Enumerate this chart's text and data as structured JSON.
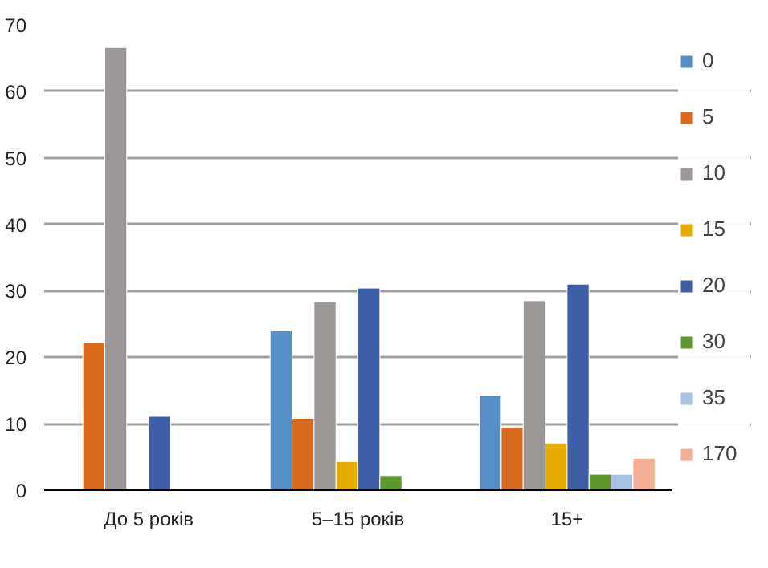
{
  "chart_data": {
    "type": "bar",
    "categories": [
      "До 5 років",
      "5–15 років",
      "15+"
    ],
    "series": [
      {
        "name": "0",
        "color": "#568ec6",
        "values": [
          null,
          24,
          14.3
        ]
      },
      {
        "name": "5",
        "color": "#d86a1e",
        "values": [
          22.2,
          10.8,
          9.5
        ]
      },
      {
        "name": "10",
        "color": "#9c9897",
        "values": [
          66.6,
          28.3,
          28.5
        ]
      },
      {
        "name": "15",
        "color": "#e6ad00",
        "values": [
          null,
          4.3,
          7.1
        ]
      },
      {
        "name": "20",
        "color": "#3e5fa8",
        "values": [
          11.1,
          30.4,
          31
        ]
      },
      {
        "name": "30",
        "color": "#5e982f",
        "values": [
          null,
          2.2,
          2.4
        ]
      },
      {
        "name": "35",
        "color": "#a6c3e6",
        "values": [
          null,
          null,
          2.4
        ]
      },
      {
        "name": "170",
        "color": "#f2ae94",
        "values": [
          null,
          null,
          4.8
        ]
      }
    ],
    "ylim": [
      0,
      70
    ],
    "yticks": [
      0,
      10,
      20,
      30,
      40,
      50,
      60,
      70
    ],
    "grid": "y",
    "legend": "right"
  }
}
